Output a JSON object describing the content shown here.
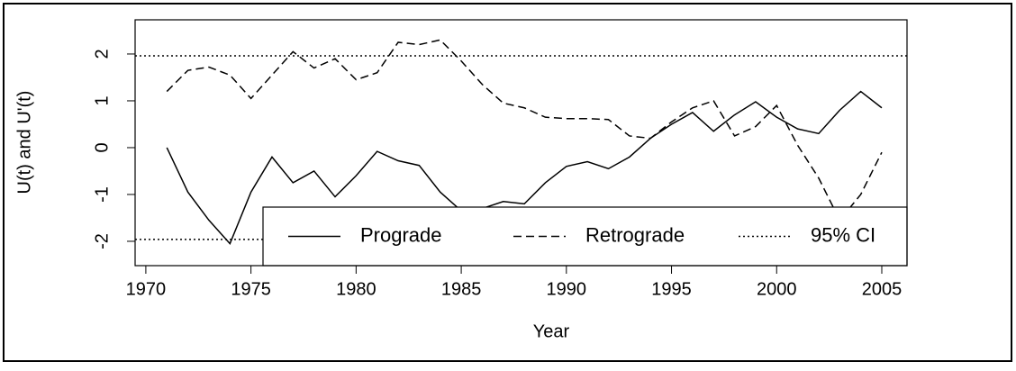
{
  "chart_data": {
    "type": "line",
    "x_label": "Year",
    "y_label": "U(t) and U'(t)",
    "x": [
      1971,
      1972,
      1973,
      1974,
      1975,
      1976,
      1977,
      1978,
      1979,
      1980,
      1981,
      1982,
      1983,
      1984,
      1985,
      1986,
      1987,
      1988,
      1989,
      1990,
      1991,
      1992,
      1993,
      1994,
      1995,
      1996,
      1997,
      1998,
      1999,
      2000,
      2001,
      2002,
      2003,
      2004,
      2005
    ],
    "series": [
      {
        "name": "Prograde",
        "color": "#000000",
        "dash": "solid",
        "values": [
          0,
          -0.95,
          -1.55,
          -2.05,
          -0.95,
          -0.2,
          -0.75,
          -0.5,
          -1.05,
          -0.6,
          -0.08,
          -0.28,
          -0.38,
          -0.95,
          -1.35,
          -1.3,
          -1.15,
          -1.2,
          -0.75,
          -0.4,
          -0.3,
          -0.45,
          -0.2,
          0.2,
          0.5,
          0.75,
          0.35,
          0.7,
          0.98,
          0.65,
          0.4,
          0.3,
          0.8,
          1.2,
          0.85
        ]
      },
      {
        "name": "Retrograde",
        "color": "#000000",
        "dash": "dashed",
        "values": [
          1.2,
          1.65,
          1.72,
          1.55,
          1.05,
          1.55,
          2.05,
          1.7,
          1.9,
          1.45,
          1.6,
          2.25,
          2.2,
          2.3,
          1.85,
          1.35,
          0.95,
          0.85,
          0.65,
          0.62,
          0.62,
          0.6,
          0.25,
          0.2,
          0.55,
          0.85,
          1.0,
          0.25,
          0.45,
          0.9,
          0.05,
          -0.65,
          -1.55,
          -1.0,
          -0.1
        ]
      },
      {
        "name": "95% CI",
        "color": "#000000",
        "dash": "dotted",
        "hlines": [
          1.96,
          -1.96
        ]
      }
    ],
    "xlim": [
      1969.49,
      2006.2
    ],
    "ylim": [
      -2.52,
      2.73
    ],
    "xticks": [
      1970,
      1975,
      1980,
      1985,
      1990,
      1995,
      2000,
      2005
    ],
    "yticks": [
      -2,
      -1,
      0,
      1,
      2
    ],
    "grid": false,
    "legend": "bottomright"
  }
}
